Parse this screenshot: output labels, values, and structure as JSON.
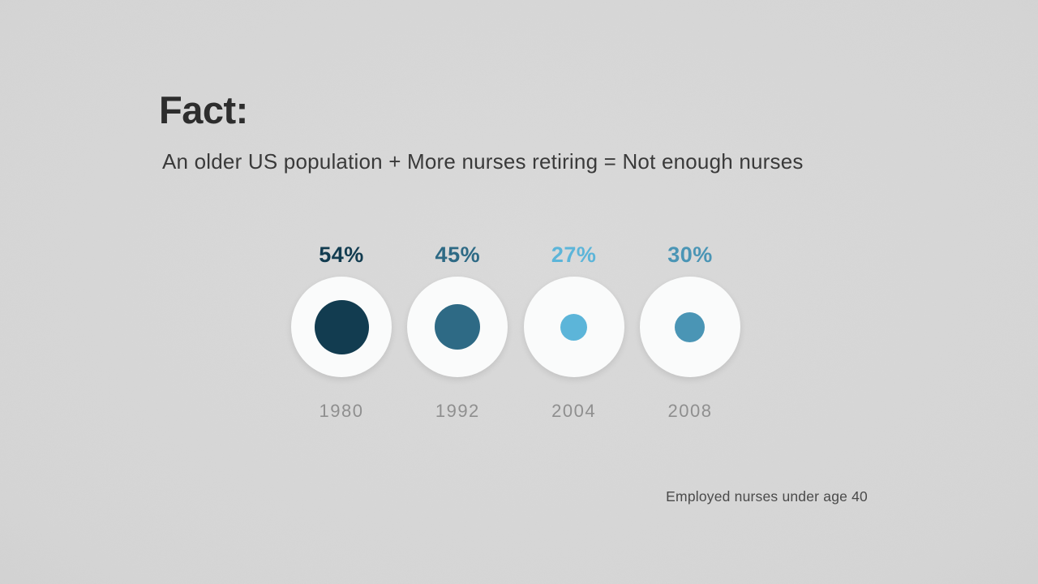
{
  "header": {
    "title": "Fact:",
    "subtitle": "An older US population + More nurses retiring = Not enough nurses"
  },
  "colors": {
    "background": "#dadada",
    "title_text": "#2d2d2d",
    "subtitle_text": "#3a3a3a",
    "year_text": "#8f8f8f",
    "caption_text": "#4a4a4a",
    "outer_circle": "#fafbfb"
  },
  "chart_data": {
    "type": "bubble",
    "title": "",
    "annotation": "Employed nurses under age 40",
    "categories": [
      "1980",
      "1992",
      "2004",
      "2008"
    ],
    "values": [
      54,
      45,
      27,
      30
    ],
    "unit": "%",
    "legend": "none",
    "points": [
      {
        "year": "1980",
        "value": 54,
        "label": "54%",
        "color": "#123c50"
      },
      {
        "year": "1992",
        "value": 45,
        "label": "45%",
        "color": "#2e6a85"
      },
      {
        "year": "2004",
        "value": 27,
        "label": "27%",
        "color": "#5cb5d9"
      },
      {
        "year": "2008",
        "value": 30,
        "label": "30%",
        "color": "#4a95b5"
      }
    ]
  }
}
